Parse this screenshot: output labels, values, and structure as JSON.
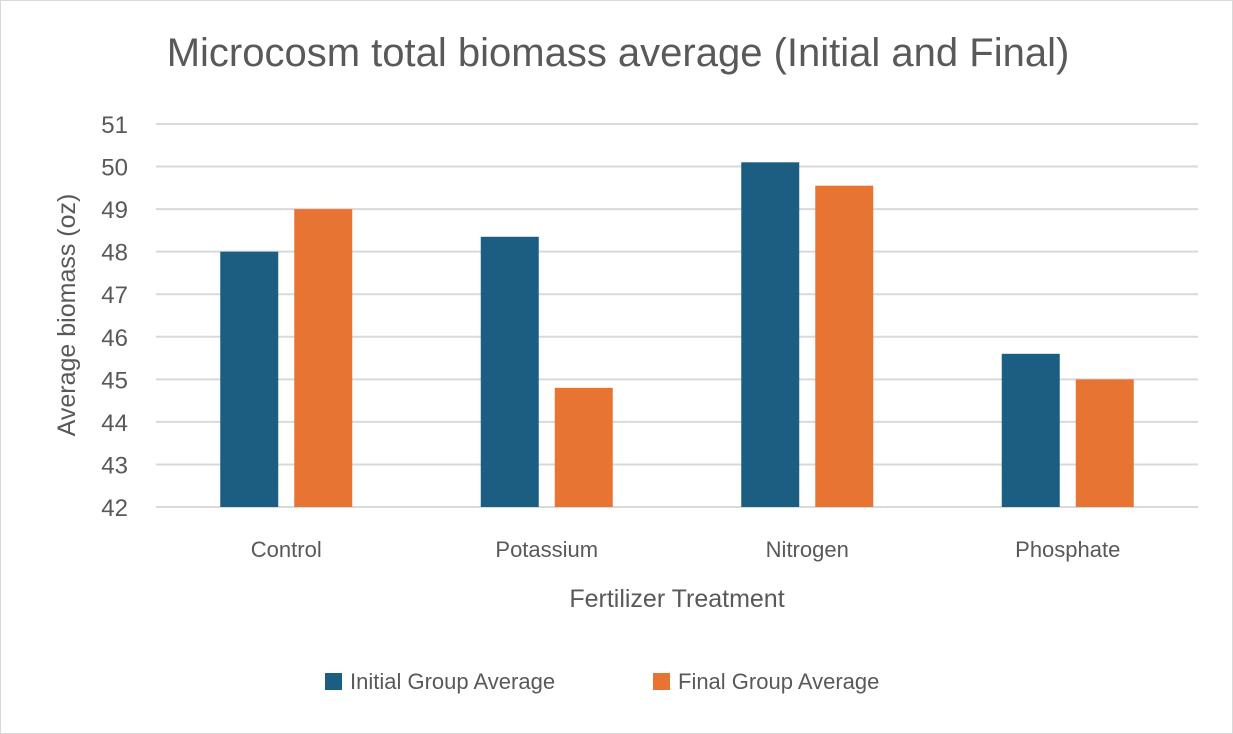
{
  "chart_data": {
    "type": "bar",
    "title": "Microcosm total biomass average (Initial and Final)",
    "xlabel": "Fertilizer Treatment",
    "ylabel": "Average biomass (oz)",
    "categories": [
      "Control",
      "Potassium",
      "Nitrogen",
      "Phosphate"
    ],
    "series": [
      {
        "name": "Initial Group Average",
        "color": "#1b5e82",
        "values": [
          48.0,
          48.35,
          50.1,
          45.6
        ]
      },
      {
        "name": "Final Group Average",
        "color": "#e87433",
        "values": [
          49.0,
          44.8,
          49.55,
          45.0
        ]
      }
    ],
    "ylim": [
      42,
      51
    ],
    "yticks": [
      "42",
      "43",
      "44",
      "45",
      "46",
      "47",
      "48",
      "49",
      "50",
      "51"
    ],
    "grid": true,
    "legend_position": "bottom"
  }
}
